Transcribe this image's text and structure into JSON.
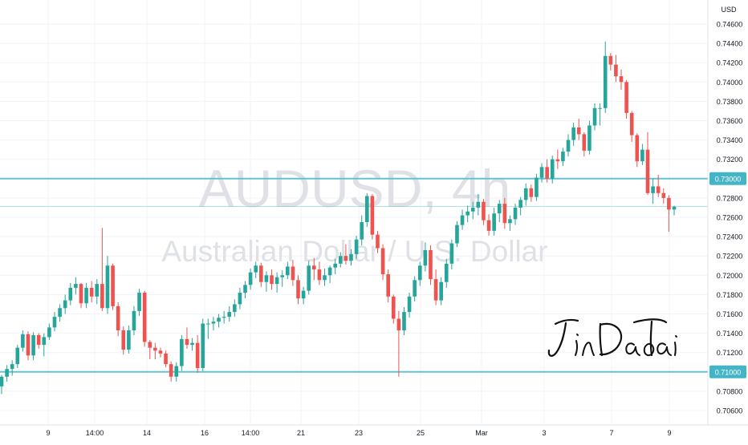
{
  "watermark": {
    "symbol": "AUDUSD, 4h",
    "description": "Australian Dollar / U.S. Dollar"
  },
  "currency": "USD",
  "signature_text": "JinDaoTai",
  "colors": {
    "up": "#26a69a",
    "down": "#ef5350",
    "hline": "#62c3d2",
    "grid": "#f0f3fa",
    "axis_text": "#131722",
    "watermark": "#dfe1e6",
    "label_bg": "#43b5c7"
  },
  "chart_data": {
    "type": "candlestick",
    "title": "AUDUSD, 4h",
    "subtitle": "Australian Dollar / U.S. Dollar",
    "y_unit": "USD",
    "ylim": [
      0.7046,
      0.7418
    ],
    "y_ticks": [
      "0.74200",
      "0.74000",
      "0.73800",
      "0.73600",
      "0.73400",
      "0.73200",
      "0.73000",
      "0.72800",
      "0.72600",
      "0.72400",
      "0.72200",
      "0.72000",
      "0.71800",
      "0.71600",
      "0.71400",
      "0.71200",
      "0.71000",
      "0.70800",
      "0.70600"
    ],
    "y_ticks_extra": [
      "0.74600",
      "0.74400"
    ],
    "x_ticks": [
      "9",
      "14:00",
      "14",
      "16",
      "14:00",
      "21",
      "23",
      "25",
      "Mar",
      "3",
      "7",
      "9"
    ],
    "horizontal_lines": [
      {
        "value": 0.73,
        "label": "0.73000"
      },
      {
        "value": 0.71,
        "label": "0.71000"
      }
    ],
    "current_price_line": 0.7271,
    "candles": [
      [
        0.7085,
        0.7097,
        0.7077,
        0.7095
      ],
      [
        0.7095,
        0.7107,
        0.709,
        0.7103
      ],
      [
        0.7103,
        0.7112,
        0.7096,
        0.7108
      ],
      [
        0.7108,
        0.7128,
        0.7104,
        0.7125
      ],
      [
        0.7125,
        0.7143,
        0.7121,
        0.7139
      ],
      [
        0.7139,
        0.7142,
        0.7112,
        0.7117
      ],
      [
        0.7117,
        0.7141,
        0.7112,
        0.7138
      ],
      [
        0.7138,
        0.714,
        0.7124,
        0.7128
      ],
      [
        0.7128,
        0.714,
        0.7116,
        0.7136
      ],
      [
        0.7136,
        0.715,
        0.7133,
        0.7146
      ],
      [
        0.7146,
        0.7162,
        0.7142,
        0.7157
      ],
      [
        0.7157,
        0.717,
        0.7152,
        0.7166
      ],
      [
        0.7166,
        0.718,
        0.716,
        0.7174
      ],
      [
        0.7174,
        0.7192,
        0.7169,
        0.7187
      ],
      [
        0.7187,
        0.7198,
        0.718,
        0.7191
      ],
      [
        0.7191,
        0.7192,
        0.7166,
        0.7171
      ],
      [
        0.7171,
        0.7192,
        0.7166,
        0.7187
      ],
      [
        0.7187,
        0.7194,
        0.7172,
        0.7178
      ],
      [
        0.7178,
        0.7196,
        0.717,
        0.7191
      ],
      [
        0.7191,
        0.7249,
        0.7163,
        0.7166
      ],
      [
        0.7166,
        0.722,
        0.716,
        0.721
      ],
      [
        0.721,
        0.7212,
        0.7164,
        0.7168
      ],
      [
        0.7168,
        0.7172,
        0.7137,
        0.7143
      ],
      [
        0.7143,
        0.7147,
        0.7118,
        0.7123
      ],
      [
        0.7123,
        0.7148,
        0.7119,
        0.7143
      ],
      [
        0.7143,
        0.7168,
        0.7138,
        0.7163
      ],
      [
        0.7163,
        0.7186,
        0.7158,
        0.7182
      ],
      [
        0.7182,
        0.7184,
        0.7126,
        0.7131
      ],
      [
        0.7131,
        0.7133,
        0.7113,
        0.7125
      ],
      [
        0.7125,
        0.713,
        0.7113,
        0.7122
      ],
      [
        0.7122,
        0.7125,
        0.7115,
        0.7119
      ],
      [
        0.7119,
        0.7122,
        0.7105,
        0.7108
      ],
      [
        0.7108,
        0.7111,
        0.709,
        0.7095
      ],
      [
        0.7095,
        0.711,
        0.709,
        0.7106
      ],
      [
        0.7106,
        0.7138,
        0.7101,
        0.7134
      ],
      [
        0.7134,
        0.7146,
        0.7124,
        0.7128
      ],
      [
        0.7128,
        0.7135,
        0.7122,
        0.713
      ],
      [
        0.713,
        0.7138,
        0.7099,
        0.7104
      ],
      [
        0.7104,
        0.7155,
        0.7101,
        0.715
      ],
      [
        0.715,
        0.7155,
        0.7134,
        0.715
      ],
      [
        0.715,
        0.7157,
        0.7143,
        0.7152
      ],
      [
        0.7152,
        0.716,
        0.7146,
        0.7156
      ],
      [
        0.7156,
        0.7163,
        0.715,
        0.7157
      ],
      [
        0.7157,
        0.7168,
        0.7152,
        0.7162
      ],
      [
        0.7162,
        0.7175,
        0.7157,
        0.717
      ],
      [
        0.717,
        0.7187,
        0.7165,
        0.7182
      ],
      [
        0.7182,
        0.7194,
        0.7176,
        0.719
      ],
      [
        0.719,
        0.7207,
        0.7185,
        0.7203
      ],
      [
        0.7203,
        0.7214,
        0.7197,
        0.721
      ],
      [
        0.721,
        0.7213,
        0.7188,
        0.7193
      ],
      [
        0.7193,
        0.7204,
        0.7183,
        0.72
      ],
      [
        0.72,
        0.7206,
        0.7185,
        0.7191
      ],
      [
        0.7191,
        0.7203,
        0.7182,
        0.7198
      ],
      [
        0.7198,
        0.7205,
        0.7188,
        0.72
      ],
      [
        0.72,
        0.7214,
        0.7196,
        0.7209
      ],
      [
        0.7209,
        0.7216,
        0.7189,
        0.7195
      ],
      [
        0.7195,
        0.72,
        0.717,
        0.7176
      ],
      [
        0.7176,
        0.7188,
        0.717,
        0.7184
      ],
      [
        0.7184,
        0.7215,
        0.718,
        0.721
      ],
      [
        0.721,
        0.7218,
        0.7195,
        0.7206
      ],
      [
        0.7206,
        0.7214,
        0.719,
        0.7195
      ],
      [
        0.7195,
        0.7207,
        0.7189,
        0.72
      ],
      [
        0.72,
        0.721,
        0.7192,
        0.7208
      ],
      [
        0.7208,
        0.7217,
        0.7201,
        0.7212
      ],
      [
        0.7212,
        0.7224,
        0.7208,
        0.722
      ],
      [
        0.722,
        0.7232,
        0.7211,
        0.7215
      ],
      [
        0.7215,
        0.7227,
        0.721,
        0.7222
      ],
      [
        0.7222,
        0.7241,
        0.7217,
        0.7237
      ],
      [
        0.7237,
        0.7262,
        0.7231,
        0.7255
      ],
      [
        0.7255,
        0.7285,
        0.725,
        0.7282
      ],
      [
        0.7282,
        0.7284,
        0.7237,
        0.7242
      ],
      [
        0.7242,
        0.7246,
        0.7223,
        0.7228
      ],
      [
        0.7228,
        0.7232,
        0.7195,
        0.7201
      ],
      [
        0.7201,
        0.7206,
        0.7172,
        0.7178
      ],
      [
        0.7178,
        0.718,
        0.715,
        0.7155
      ],
      [
        0.7155,
        0.7163,
        0.7095,
        0.7143
      ],
      [
        0.7143,
        0.7167,
        0.7138,
        0.7162
      ],
      [
        0.7162,
        0.7182,
        0.7156,
        0.7178
      ],
      [
        0.7178,
        0.7199,
        0.7173,
        0.7195
      ],
      [
        0.7195,
        0.7214,
        0.7189,
        0.721
      ],
      [
        0.721,
        0.7234,
        0.7204,
        0.7226
      ],
      [
        0.7226,
        0.7231,
        0.719,
        0.7196
      ],
      [
        0.7196,
        0.7206,
        0.7169,
        0.7174
      ],
      [
        0.7174,
        0.7198,
        0.7169,
        0.7193
      ],
      [
        0.7193,
        0.7217,
        0.7187,
        0.7212
      ],
      [
        0.7212,
        0.7237,
        0.7206,
        0.7233
      ],
      [
        0.7233,
        0.7256,
        0.7229,
        0.7252
      ],
      [
        0.7252,
        0.7268,
        0.7247,
        0.7262
      ],
      [
        0.7262,
        0.7272,
        0.7255,
        0.7266
      ],
      [
        0.7266,
        0.7276,
        0.7258,
        0.727
      ],
      [
        0.727,
        0.7284,
        0.7262,
        0.7276
      ],
      [
        0.7276,
        0.7279,
        0.7252,
        0.7257
      ],
      [
        0.7257,
        0.7263,
        0.7241,
        0.7246
      ],
      [
        0.7246,
        0.727,
        0.7241,
        0.7264
      ],
      [
        0.7264,
        0.7278,
        0.7255,
        0.7274
      ],
      [
        0.7274,
        0.728,
        0.7248,
        0.7254
      ],
      [
        0.7254,
        0.7262,
        0.7246,
        0.7258
      ],
      [
        0.7258,
        0.7274,
        0.7252,
        0.727
      ],
      [
        0.727,
        0.7281,
        0.7262,
        0.7278
      ],
      [
        0.7278,
        0.7295,
        0.7272,
        0.729
      ],
      [
        0.729,
        0.7294,
        0.7276,
        0.7281
      ],
      [
        0.7281,
        0.7305,
        0.7277,
        0.7301
      ],
      [
        0.7301,
        0.7316,
        0.7296,
        0.7312
      ],
      [
        0.7312,
        0.732,
        0.7296,
        0.73
      ],
      [
        0.73,
        0.7324,
        0.7295,
        0.732
      ],
      [
        0.732,
        0.733,
        0.731,
        0.7318
      ],
      [
        0.7318,
        0.7332,
        0.7313,
        0.7328
      ],
      [
        0.7328,
        0.7346,
        0.7323,
        0.734
      ],
      [
        0.734,
        0.7358,
        0.7334,
        0.7353
      ],
      [
        0.7353,
        0.7362,
        0.734,
        0.7346
      ],
      [
        0.7346,
        0.7348,
        0.7323,
        0.7329
      ],
      [
        0.7329,
        0.736,
        0.7325,
        0.7355
      ],
      [
        0.7355,
        0.7378,
        0.735,
        0.7373
      ],
      [
        0.7373,
        0.7378,
        0.7355,
        0.7373
      ],
      [
        0.7373,
        0.7442,
        0.7368,
        0.7427
      ],
      [
        0.7427,
        0.743,
        0.7412,
        0.7418
      ],
      [
        0.7418,
        0.7428,
        0.74,
        0.7406
      ],
      [
        0.7406,
        0.7413,
        0.7392,
        0.74
      ],
      [
        0.74,
        0.7402,
        0.7362,
        0.7368
      ],
      [
        0.7368,
        0.737,
        0.7338,
        0.7345
      ],
      [
        0.7345,
        0.7347,
        0.7312,
        0.7318
      ],
      [
        0.7318,
        0.7336,
        0.7314,
        0.733
      ],
      [
        0.733,
        0.7348,
        0.7283,
        0.7285
      ],
      [
        0.7285,
        0.73,
        0.7274,
        0.7292
      ],
      [
        0.7292,
        0.7304,
        0.7281,
        0.7285
      ],
      [
        0.7285,
        0.729,
        0.7274,
        0.728
      ],
      [
        0.728,
        0.7283,
        0.7245,
        0.7268
      ],
      [
        0.7268,
        0.7272,
        0.7262,
        0.7271
      ]
    ]
  }
}
